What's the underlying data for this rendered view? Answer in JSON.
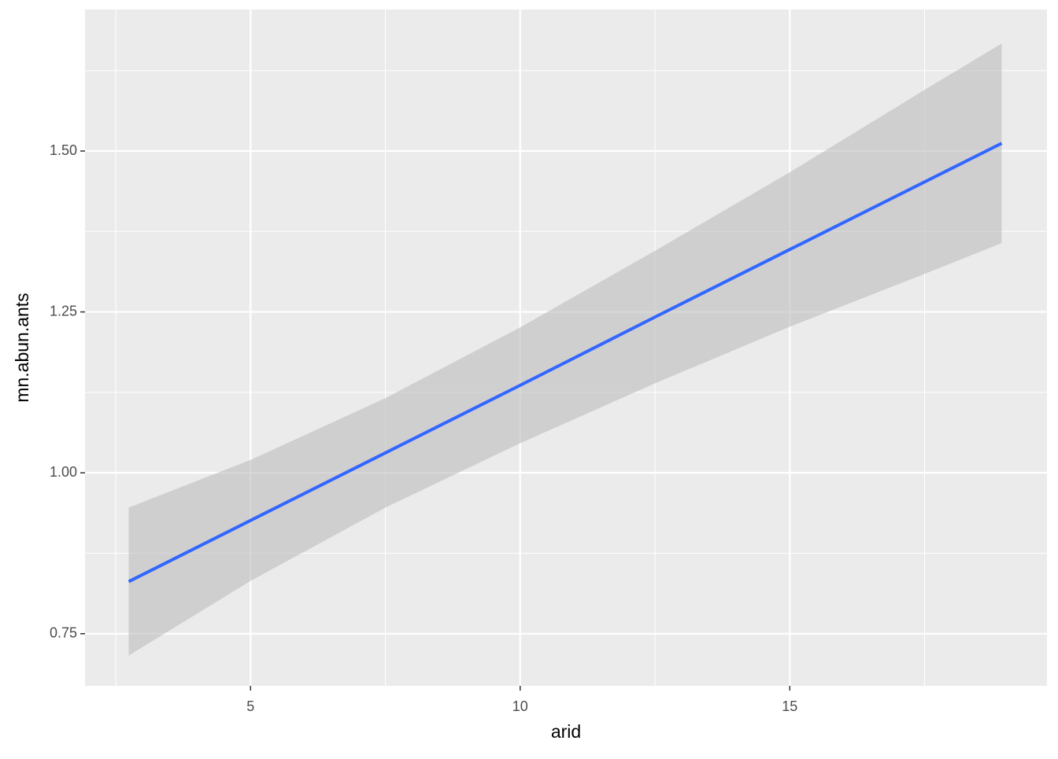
{
  "chart_data": {
    "type": "line",
    "x_label": "arid",
    "y_label": "mn.abun.ants",
    "x": [
      2.74,
      5,
      7.5,
      10,
      12.5,
      15,
      17.5,
      18.93
    ],
    "series": [
      {
        "color": "#3366ff",
        "values": [
          0.831,
          0.926,
          1.031,
          1.136,
          1.242,
          1.347,
          1.452,
          1.512
        ]
      }
    ],
    "band": {
      "color": "#bdbdbd",
      "upper": [
        0.946,
        1.02,
        1.116,
        1.226,
        1.345,
        1.467,
        1.595,
        1.667
      ],
      "lower": [
        0.716,
        0.832,
        0.946,
        1.046,
        1.139,
        1.227,
        1.309,
        1.357
      ]
    },
    "xlim": [
      1.93,
      19.77
    ],
    "ylim": [
      0.669,
      1.72
    ],
    "xticks": [
      5,
      10,
      15
    ],
    "yticks": [
      {
        "value": 0.75,
        "label": "0.75"
      },
      {
        "value": 1.0,
        "label": "1.00"
      },
      {
        "value": 1.25,
        "label": "1.25"
      },
      {
        "value": 1.5,
        "label": "1.50"
      }
    ],
    "x_minor_grid": [
      2.5,
      7.5,
      12.5,
      17.5
    ],
    "y_minor_grid": [
      0.875,
      1.125,
      1.375,
      1.625
    ],
    "grid": true,
    "panel_color": "#ebebeb"
  }
}
